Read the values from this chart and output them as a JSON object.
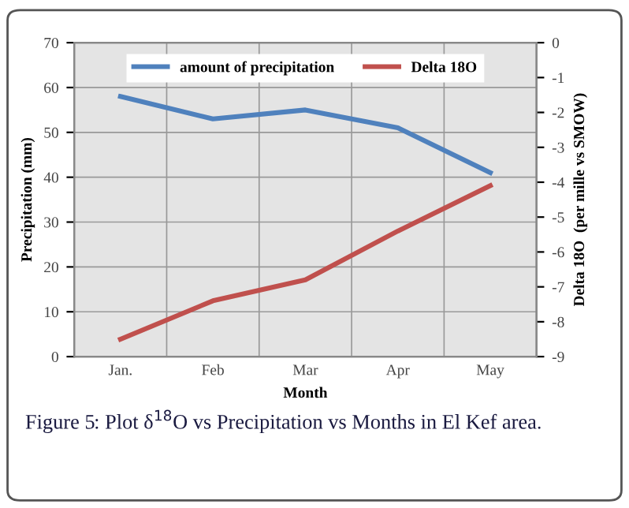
{
  "chart_data": {
    "type": "line",
    "xlabel": "Month",
    "ylabel": "Precipitation (mm)",
    "y2label": "Delta 18O  (per mille vs SMOW)",
    "categories": [
      "Jan.",
      "Feb",
      "Mar",
      "Apr",
      "May"
    ],
    "series": [
      {
        "name": "amount of precipitation",
        "color": "#4f81bd",
        "values": [
          58,
          53,
          55,
          51,
          41
        ]
      },
      {
        "name": "Delta 18O",
        "color": "#c0504d",
        "axis": "y2",
        "values": [
          -8.5,
          -7.4,
          -6.8,
          -5.4,
          -4.1
        ]
      }
    ],
    "ylim": [
      0,
      70
    ],
    "yticks": [
      0,
      10,
      20,
      30,
      40,
      50,
      60,
      70
    ],
    "y2lim": [
      -9,
      0
    ],
    "y2ticks": [
      -9,
      -8,
      -7,
      -6,
      -5,
      -4,
      -3,
      -2,
      -1,
      0
    ],
    "grid": true,
    "legend": "top",
    "marker": "none",
    "line_style": "solid",
    "annotations": [
      "Figure 5: Plot δ$^{18}$O vs Precipitation vs Months in El Kef area."
    ]
  }
}
